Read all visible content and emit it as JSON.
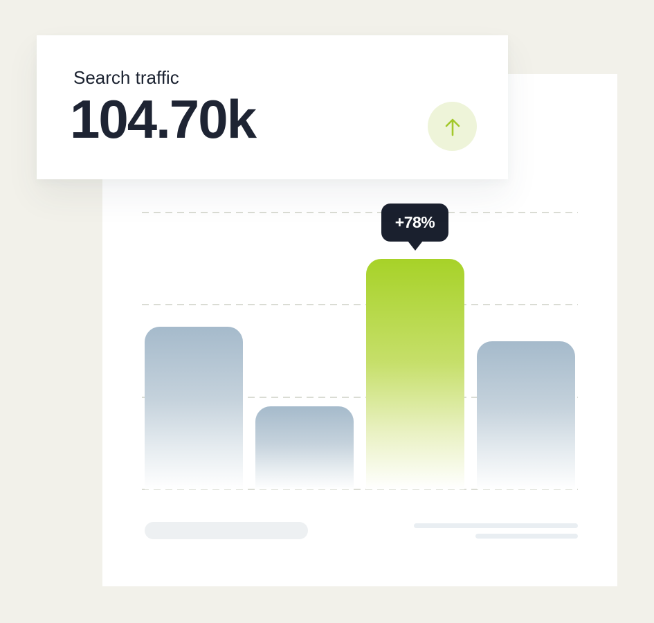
{
  "page": {
    "background_color": "#f2f1ea"
  },
  "stat_card": {
    "label": "Search traffic",
    "value": "104.70k",
    "trend": {
      "direction": "up",
      "icon": "arrow-up-icon",
      "badge_color": "#eef4d9",
      "arrow_color": "#a3c82c"
    }
  },
  "chart_data": {
    "type": "bar",
    "title": "",
    "categories": [
      "",
      "",
      "",
      ""
    ],
    "values": [
      58.8,
      30,
      83.3,
      53.5
    ],
    "value_unit": "percent-of-plot-height",
    "highlight": {
      "index": 2,
      "label": "+78%"
    },
    "colors": {
      "bar_default_top": "#a5bacb",
      "bar_highlight_top": "#a7d228",
      "bar_fade_to": "#ffffff",
      "tooltip_background": "#1a202e",
      "tooltip_text": "#ffffff",
      "gridline": "#dadcd4"
    },
    "gridlines": {
      "style": "dashed",
      "count": 4
    },
    "axis_labels_visible": false,
    "legend_visible": false,
    "placeholders": {
      "left_pill": true,
      "right_lines": 2
    }
  }
}
